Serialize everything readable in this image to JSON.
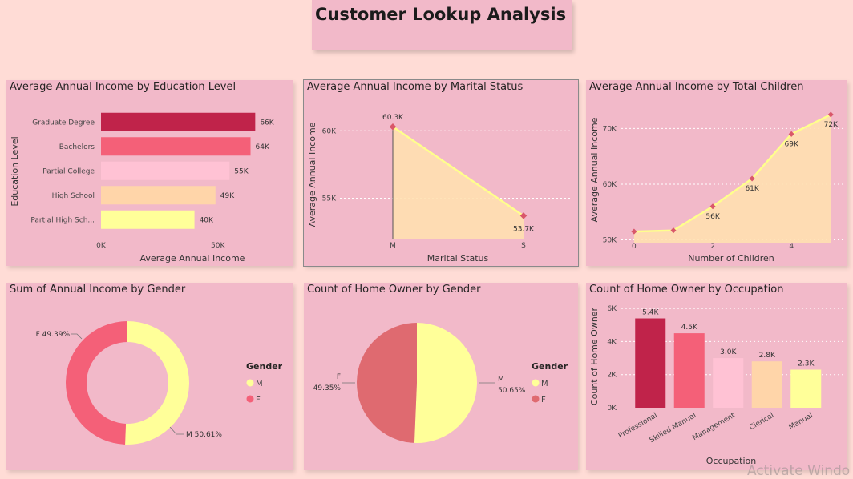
{
  "page": {
    "title": "Customer Lookup Analysis",
    "watermark": "Activate Windo"
  },
  "colors": {
    "page_bg": "#ffdcd6",
    "panel_bg": "#f2b9c9",
    "c1": "#c0234a",
    "c2": "#f46078",
    "c3": "#ffc2d4",
    "c4": "#ffd5a9",
    "c5": "#ffff99",
    "line": "#ffff8c",
    "area": "#ffe0b0",
    "marker": "#d9576a",
    "pie_f": "#df6a70"
  },
  "chart_data": [
    {
      "id": "edu",
      "type": "bar",
      "orientation": "horizontal",
      "title": "Average Annual Income by Education Level",
      "xlabel": "Average Annual Income",
      "ylabel": "Education Level",
      "categories": [
        "Graduate Degree",
        "Bachelors",
        "Partial College",
        "High School",
        "Partial High Sch..."
      ],
      "values": [
        66000,
        64000,
        55000,
        49000,
        40000
      ],
      "data_labels": [
        "66K",
        "64K",
        "55K",
        "49K",
        "40K"
      ],
      "xlim": [
        0,
        70000
      ],
      "xticks": [
        0,
        50000
      ],
      "xtick_labels": [
        "0K",
        "50K"
      ]
    },
    {
      "id": "marital",
      "type": "area",
      "title": "Average Annual Income by Marital Status",
      "xlabel": "Marital Status",
      "ylabel": "Average Annual Income",
      "categories": [
        "M",
        "S"
      ],
      "values": [
        60300,
        53700
      ],
      "data_labels": [
        "60.3K",
        "53.7K"
      ],
      "ylim": [
        52000,
        61500
      ],
      "yticks": [
        55000,
        60000
      ],
      "ytick_labels": [
        "55K",
        "60K"
      ]
    },
    {
      "id": "children",
      "type": "area",
      "title": "Average Annual Income by Total Children",
      "xlabel": "Number of Children",
      "ylabel": "Average Annual Income",
      "x": [
        0,
        1,
        2,
        3,
        4,
        5
      ],
      "values": [
        51500,
        51700,
        56000,
        61000,
        69000,
        72500
      ],
      "data_labels": [
        "",
        "",
        "56K",
        "61K",
        "69K",
        "72K"
      ],
      "xlim": [
        -0.1,
        5.3
      ],
      "xticks": [
        0,
        2,
        4
      ],
      "xtick_labels": [
        "0",
        "2",
        "4"
      ],
      "ylim": [
        49500,
        73500
      ],
      "yticks": [
        50000,
        60000,
        70000
      ],
      "ytick_labels": [
        "50K",
        "60K",
        "70K"
      ]
    },
    {
      "id": "income_gender",
      "type": "pie",
      "donut": true,
      "title": "Sum of Annual Income by Gender",
      "legend_title": "Gender",
      "legend_position": "right",
      "slices": [
        {
          "label": "M",
          "value": 50.61,
          "data_label": "M 50.61%"
        },
        {
          "label": "F",
          "value": 49.39,
          "data_label": "F 49.39%"
        }
      ]
    },
    {
      "id": "home_gender",
      "type": "pie",
      "donut": false,
      "title": "Count of Home Owner by Gender",
      "legend_title": "Gender",
      "legend_position": "right",
      "slices": [
        {
          "label": "M",
          "value": 50.65,
          "data_label_name": "M",
          "data_label_value": "50.65%"
        },
        {
          "label": "F",
          "value": 49.35,
          "data_label_name": "F",
          "data_label_value": "49.35%"
        }
      ]
    },
    {
      "id": "occupation",
      "type": "bar",
      "orientation": "vertical",
      "title": "Count of Home Owner by Occupation",
      "xlabel": "Occupation",
      "ylabel": "Count of Home Owner",
      "categories": [
        "Professional",
        "Skilled Manual",
        "Management",
        "Clerical",
        "Manual"
      ],
      "values": [
        5400,
        4500,
        3000,
        2800,
        2300
      ],
      "data_labels": [
        "5.4K",
        "4.5K",
        "3.0K",
        "2.8K",
        "2.3K"
      ],
      "ylim": [
        0,
        6200
      ],
      "yticks": [
        0,
        2000,
        4000,
        6000
      ],
      "ytick_labels": [
        "0K",
        "2K",
        "4K",
        "6K"
      ]
    }
  ]
}
